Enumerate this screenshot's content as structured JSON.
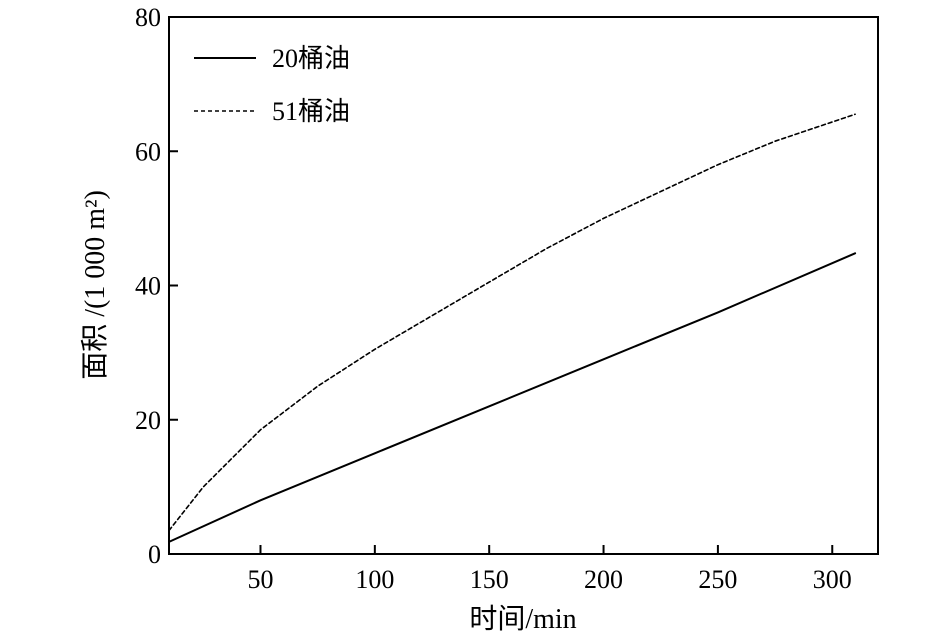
{
  "chart_data": {
    "type": "line",
    "title": "",
    "xlabel": "时间/min",
    "ylabel": "面积 /(1 000 m²)",
    "xlim": [
      10,
      320
    ],
    "ylim": [
      0,
      80
    ],
    "x_ticks": [
      50,
      100,
      150,
      200,
      250,
      300
    ],
    "y_ticks": [
      0,
      20,
      40,
      60,
      80
    ],
    "grid": false,
    "legend_position": "top-left",
    "series": [
      {
        "name": "20桶油",
        "style": "solid",
        "color": "#000000",
        "x": [
          10,
          50,
          100,
          150,
          200,
          250,
          310
        ],
        "y": [
          1.8,
          8.0,
          15.0,
          22.0,
          29.0,
          36.0,
          44.8
        ]
      },
      {
        "name": "51桶油",
        "style": "dashed",
        "color": "#000000",
        "x": [
          10,
          25,
          50,
          75,
          100,
          125,
          150,
          175,
          200,
          225,
          250,
          275,
          310
        ],
        "y": [
          3.5,
          10.0,
          18.5,
          25.0,
          30.5,
          35.5,
          40.5,
          45.5,
          50.0,
          54.0,
          58.0,
          61.5,
          65.5
        ]
      }
    ]
  }
}
